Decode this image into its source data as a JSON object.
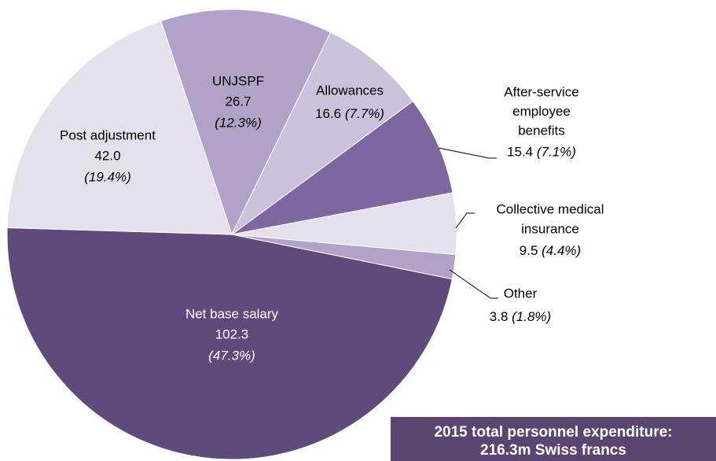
{
  "chart_data": {
    "type": "pie",
    "labels": [
      [
        "Net base salary"
      ],
      [
        "Other"
      ],
      [
        "Collective medical",
        "insurance"
      ],
      [
        "After-service",
        "employee",
        "benefits"
      ],
      [
        "Allowances"
      ],
      [
        "UNJSPF"
      ],
      [
        "Post adjustment"
      ]
    ],
    "values": [
      102.3,
      3.8,
      9.5,
      15.4,
      16.6,
      26.7,
      42.0
    ],
    "value_labels": [
      "102.3",
      "3.8",
      "9.5",
      "15.4",
      "16.6",
      "26.7",
      "42.0"
    ],
    "percent_labels": [
      "(47.3%)",
      "(1.8%)",
      "(4.4%)",
      "(7.1%)",
      "(7.7%)",
      "(12.3%)",
      "(19.4%)"
    ],
    "colors": [
      "#604a7b",
      "#b3a2c7",
      "#e6e0ec",
      "#7e67a1",
      "#ccc1da",
      "#b3a2c7",
      "#e6e0ec"
    ],
    "annotation": [
      "2015 total personnel expenditure:",
      "216.3m Swiss francs"
    ]
  }
}
